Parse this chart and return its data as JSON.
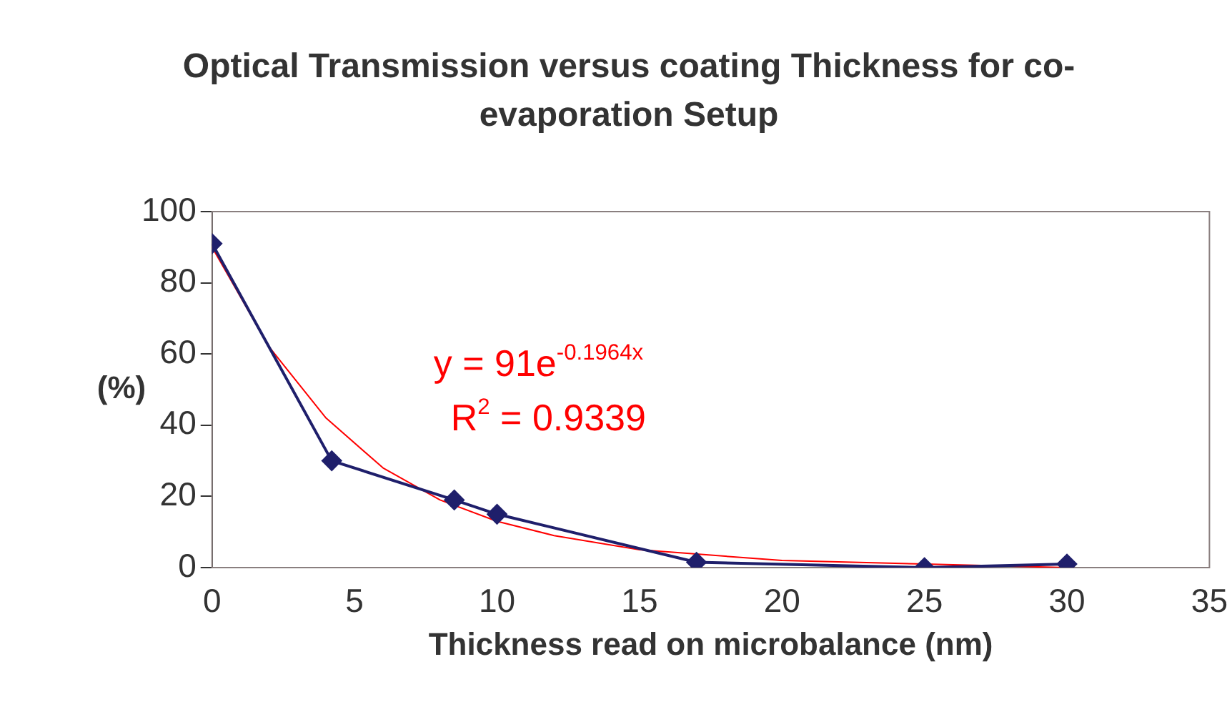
{
  "chart_data": {
    "type": "line",
    "title": "Optical Transmission versus coating Thickness for co-evaporation Setup",
    "xlabel": "Thickness read on microbalance (nm)",
    "ylabel": "(%)",
    "xlim": [
      0,
      35
    ],
    "xticks": [
      0,
      5,
      10,
      15,
      20,
      25,
      30,
      35
    ],
    "ylim": [
      0,
      100
    ],
    "yticks": [
      0,
      20,
      40,
      60,
      80,
      100
    ],
    "grid": false,
    "legend": false,
    "series": [
      {
        "color": "#1f1f6b",
        "marker": "diamond",
        "x": [
          0,
          4.2,
          8.5,
          10,
          17,
          25,
          30
        ],
        "values": [
          91,
          30,
          19,
          15,
          1.5,
          0,
          1
        ]
      },
      {
        "color": "#ff0000",
        "marker": "none",
        "x": [
          0,
          2,
          4,
          6,
          8,
          10,
          12,
          15,
          20,
          25,
          30
        ],
        "values": [
          90,
          62,
          42,
          28,
          19,
          13,
          9,
          5,
          2,
          1,
          0
        ]
      }
    ],
    "annotations": [
      "y = 91e$^{-0.1964x}$",
      "R$^{2}$ = 0.9339"
    ]
  }
}
